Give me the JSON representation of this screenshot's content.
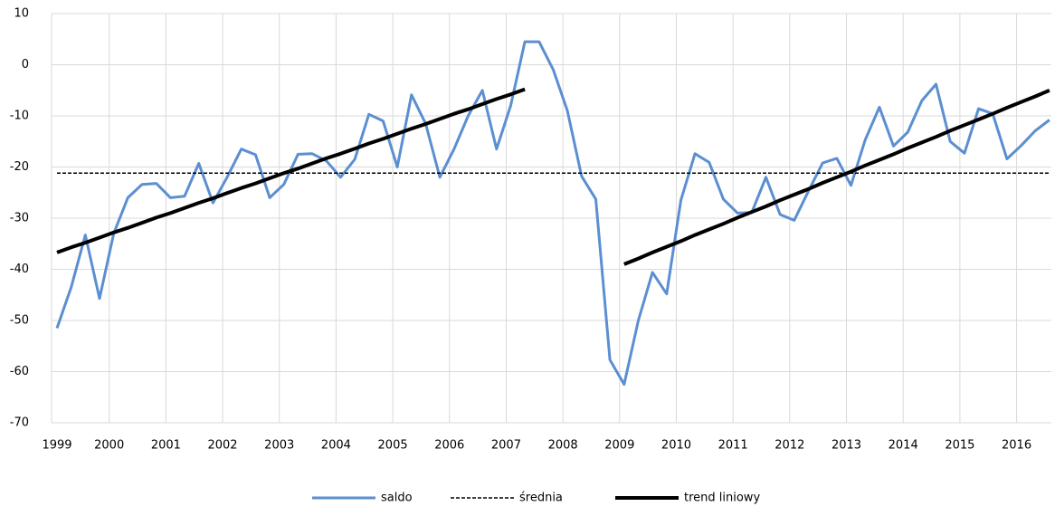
{
  "chart_data": {
    "type": "line",
    "categories": [
      "1999",
      null,
      null,
      null,
      "2000",
      null,
      null,
      null,
      "2001",
      null,
      null,
      null,
      "2002",
      null,
      null,
      null,
      "2003",
      null,
      null,
      null,
      "2004",
      null,
      null,
      null,
      "2005",
      null,
      null,
      null,
      "2006",
      null,
      null,
      null,
      "2007",
      null,
      null,
      null,
      "2008",
      null,
      null,
      null,
      "2009",
      null,
      null,
      null,
      "2010",
      null,
      null,
      null,
      "2011",
      null,
      null,
      null,
      "2012",
      null,
      null,
      null,
      "2013",
      null,
      null,
      null,
      "2014",
      null,
      null,
      null,
      "2015",
      null,
      null,
      null,
      "2016",
      null,
      null
    ],
    "series": [
      {
        "name": "saldo",
        "color": "#5b8fd1",
        "style": "solid",
        "values": [
          -51.5,
          -43.5,
          -33.3,
          -45.7,
          -33,
          -26,
          -23.4,
          -23.2,
          -26,
          -25.7,
          -19.3,
          -27,
          -22,
          -16.5,
          -17.6,
          -26,
          -23.4,
          -17.5,
          -17.4,
          -18.8,
          -22,
          -18.5,
          -9.7,
          -11,
          -20,
          -5.9,
          -11.5,
          -22,
          -16.5,
          -10,
          -5,
          -16.5,
          -8,
          4.5,
          4.5,
          -1,
          -9,
          -21.8,
          -26.3,
          -57.7,
          -62.5,
          -50,
          -40.6,
          -44.8,
          -26.5,
          -17.4,
          -19.1,
          -26.3,
          -29,
          -28.9,
          -22,
          -29.3,
          -30.4,
          -24.7,
          -19.2,
          -18.3,
          -23.6,
          -14.7,
          -8.3,
          -15.9,
          -13.2,
          -7,
          -3.8,
          -15,
          -17.3,
          -8.6,
          -9.6,
          -18.4,
          -15.8,
          -12.9,
          -10.8
        ]
      },
      {
        "name": "średnia",
        "color": "#000000",
        "style": "dashed",
        "values": [
          -21.2,
          -21.2,
          -21.2,
          -21.2,
          -21.2,
          -21.2,
          -21.2,
          -21.2,
          -21.2,
          -21.2,
          -21.2,
          -21.2,
          -21.2,
          -21.2,
          -21.2,
          -21.2,
          -21.2,
          -21.2,
          -21.2,
          -21.2,
          -21.2,
          -21.2,
          -21.2,
          -21.2,
          -21.2,
          -21.2,
          -21.2,
          -21.2,
          -21.2,
          -21.2,
          -21.2,
          -21.2,
          -21.2,
          -21.2,
          -21.2,
          -21.2,
          -21.2,
          -21.2,
          -21.2,
          -21.2,
          -21.2,
          -21.2,
          -21.2,
          -21.2,
          -21.2,
          -21.2,
          -21.2,
          -21.2,
          -21.2,
          -21.2,
          -21.2,
          -21.2,
          -21.2,
          -21.2,
          -21.2,
          -21.2,
          -21.2,
          -21.2,
          -21.2,
          -21.2,
          -21.2,
          -21.2,
          -21.2,
          -21.2,
          -21.2,
          -21.2,
          -21.2,
          -21.2,
          -21.2,
          -21.2,
          -21.2
        ]
      },
      {
        "name": "trend liniowy",
        "color": "#000000",
        "style": "bold",
        "values": [
          -36.7,
          -35.7,
          -34.8,
          -33.8,
          -32.8,
          -31.9,
          -30.9,
          -29.9,
          -29.0,
          -28.0,
          -27.0,
          -26.1,
          -25.1,
          -24.1,
          -23.2,
          -22.2,
          -21.2,
          -20.3,
          -19.3,
          -18.3,
          -17.4,
          -16.4,
          -15.4,
          -14.5,
          -13.5,
          -12.5,
          -11.6,
          -10.6,
          -9.6,
          -8.7,
          -7.7,
          -6.7,
          -5.8,
          -4.8,
          null,
          null,
          null,
          null,
          null,
          null,
          -39.0,
          -37.9,
          -36.7,
          -35.6,
          -34.5,
          -33.3,
          -32.2,
          -31.1,
          -29.9,
          -28.8,
          -27.7,
          -26.5,
          -25.4,
          -24.3,
          -23.1,
          -22.0,
          -20.9,
          -19.7,
          -18.6,
          -17.5,
          -16.3,
          -15.2,
          -14.1,
          -12.9,
          -11.8,
          -10.7,
          -9.6,
          -8.4,
          -7.3,
          -6.2,
          -5.0
        ]
      }
    ],
    "ylim": [
      -70,
      10
    ],
    "yticks": [
      -70,
      -60,
      -50,
      -40,
      -30,
      -20,
      -10,
      0,
      10
    ],
    "grid": true,
    "legend": "bottom"
  }
}
